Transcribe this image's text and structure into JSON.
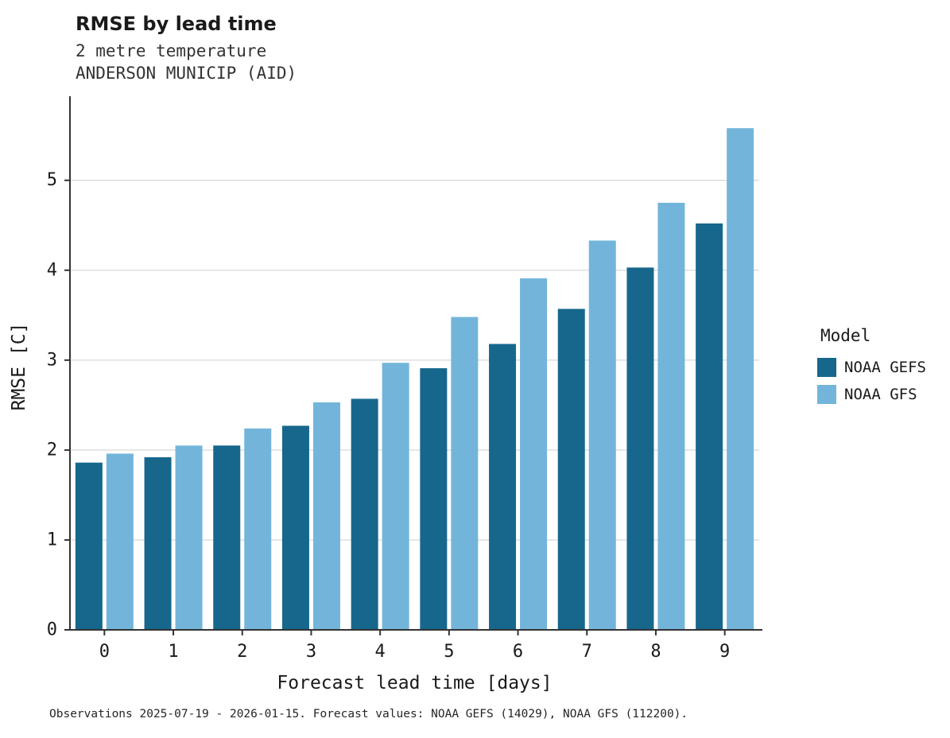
{
  "header": {
    "title": "RMSE by lead time",
    "subtitle_line1": "2 metre temperature",
    "subtitle_line2": "ANDERSON MUNICIP (AID)"
  },
  "legend": {
    "title": "Model"
  },
  "caption": "Observations 2025-07-19 - 2026-01-15. Forecast values: NOAA GEFS (14029), NOAA GFS (112200).",
  "colors": {
    "gefs": "#17678d",
    "gfs": "#73b5da",
    "grid": "#dcdcdc",
    "axis": "#333333",
    "tick_label": "#1a1a1a"
  },
  "chart_data": {
    "type": "bar",
    "title": "RMSE by lead time",
    "xlabel": "Forecast lead time [days]",
    "ylabel": "RMSE [C]",
    "categories": [
      "0",
      "1",
      "2",
      "3",
      "4",
      "5",
      "6",
      "7",
      "8",
      "9"
    ],
    "series": [
      {
        "name": "NOAA GEFS",
        "color": "#17678d",
        "values": [
          1.86,
          1.92,
          2.05,
          2.27,
          2.57,
          2.91,
          3.18,
          3.57,
          4.03,
          4.52
        ]
      },
      {
        "name": "NOAA GFS",
        "color": "#73b5da",
        "values": [
          1.96,
          2.05,
          2.24,
          2.53,
          2.97,
          3.48,
          3.91,
          4.33,
          4.75,
          5.58
        ]
      }
    ],
    "ylim": [
      0,
      5.9
    ],
    "y_ticks": [
      0,
      1,
      2,
      3,
      4,
      5
    ],
    "grid": true,
    "legend_position": "right",
    "legend_title": "Model"
  }
}
